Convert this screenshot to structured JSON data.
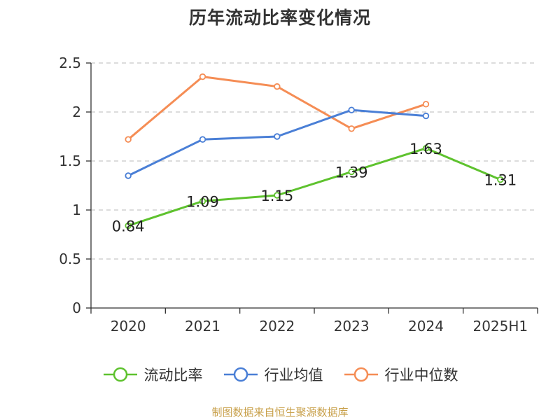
{
  "chart_data": {
    "type": "line",
    "title": "历年流动比率变化情况",
    "categories": [
      "2020",
      "2021",
      "2022",
      "2023",
      "2024",
      "2025H1"
    ],
    "ylim": [
      0,
      2.5
    ],
    "yticks": [
      "0",
      "0.5",
      "1",
      "1.5",
      "2",
      "2.5"
    ],
    "grid": true,
    "legend_position": "bottom",
    "series": [
      {
        "name": "流动比率",
        "color": "#5ec22e",
        "values": [
          0.84,
          1.09,
          1.15,
          1.39,
          1.63,
          1.31
        ],
        "labels": [
          "0.84",
          "1.09",
          "1.15",
          "1.39",
          "1.63",
          "1.31"
        ]
      },
      {
        "name": "行业均值",
        "color": "#4a7fd6",
        "values": [
          1.35,
          1.72,
          1.75,
          2.02,
          1.96,
          null
        ]
      },
      {
        "name": "行业中位数",
        "color": "#f58d55",
        "values": [
          1.72,
          2.36,
          2.26,
          1.83,
          2.08,
          null
        ]
      }
    ]
  },
  "footer": {
    "source": "制图数据来自恒生聚源数据库"
  }
}
